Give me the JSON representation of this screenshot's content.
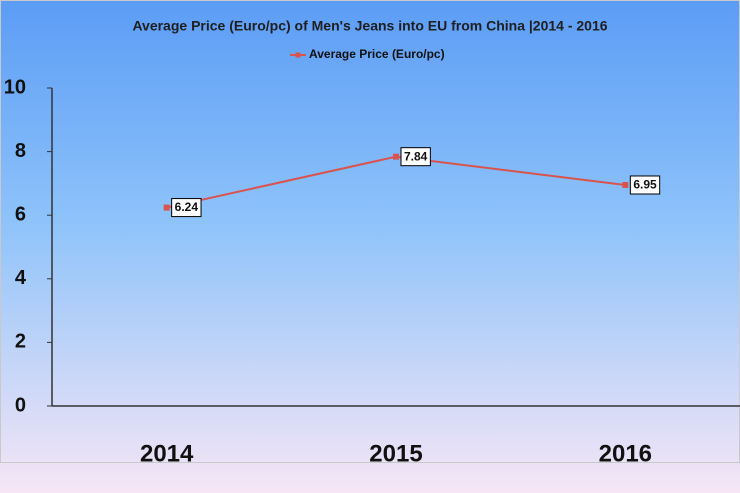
{
  "chart_data": {
    "type": "line",
    "title": "Average Price (Euro/pc) of Men's Jeans into EU from China |2014 - 2016",
    "categories": [
      "2014",
      "2015",
      "2016"
    ],
    "series": [
      {
        "name": "Average Price (Euro/pc)",
        "color": "#d9534f",
        "values": [
          6.24,
          7.84,
          6.95
        ]
      }
    ],
    "ylim": [
      0,
      10
    ],
    "yticks": [
      0,
      2,
      4,
      6,
      8,
      10
    ],
    "legend": "top"
  }
}
